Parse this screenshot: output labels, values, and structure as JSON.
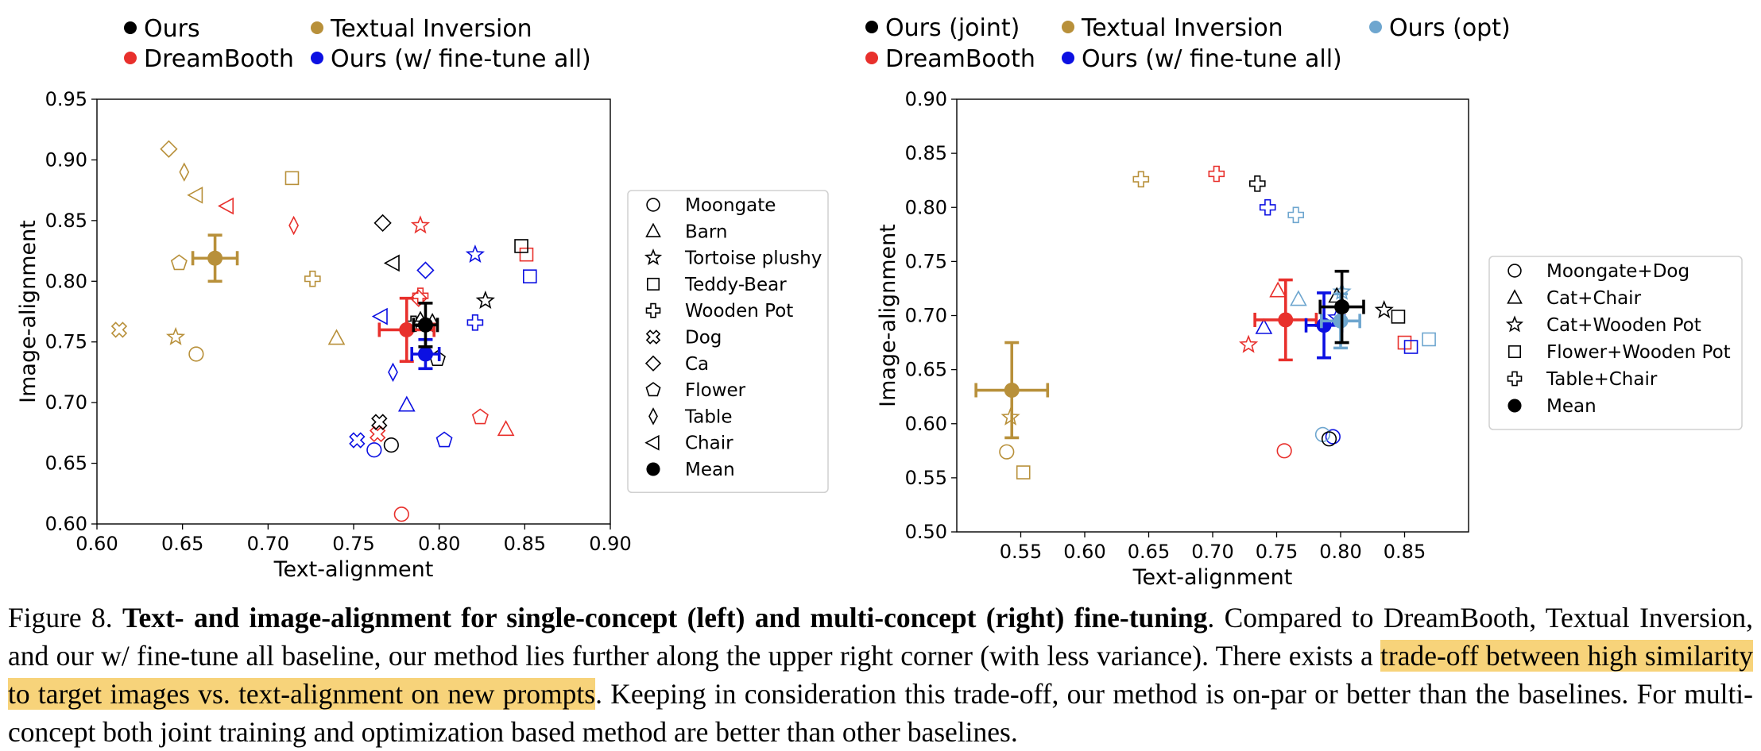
{
  "colors": {
    "ours": "#000000",
    "textual_inversion": "#b8903a",
    "dreambooth": "#e8302c",
    "ours_finetune_all": "#0c10e2",
    "ours_opt": "#6ea6cf"
  },
  "chart_data": [
    {
      "type": "scatter",
      "title": "",
      "xlabel": "Text-alignment",
      "ylabel": "Image-alignment",
      "xlim": [
        0.6,
        0.9
      ],
      "ylim": [
        0.6,
        0.95
      ],
      "xticks": [
        "0.60",
        "0.65",
        "0.70",
        "0.75",
        "0.80",
        "0.85",
        "0.90"
      ],
      "yticks": [
        "0.60",
        "0.65",
        "0.70",
        "0.75",
        "0.80",
        "0.85",
        "0.90",
        "0.95"
      ],
      "method_legend": [
        {
          "label": "Ours",
          "color": "#000000"
        },
        {
          "label": "Textual Inversion",
          "color": "#b8903a"
        },
        {
          "label": "DreamBooth",
          "color": "#e8302c"
        },
        {
          "label": "Ours (w/ fine-tune all)",
          "color": "#0c10e2"
        }
      ],
      "shape_legend": [
        {
          "label": "Moongate",
          "marker": "circle"
        },
        {
          "label": "Barn",
          "marker": "triangle"
        },
        {
          "label": "Tortoise plushy",
          "marker": "star"
        },
        {
          "label": "Teddy-Bear",
          "marker": "square"
        },
        {
          "label": "Wooden Pot",
          "marker": "plus"
        },
        {
          "label": "Dog",
          "marker": "xcross"
        },
        {
          "label": "Ca",
          "marker": "diamond"
        },
        {
          "label": "Flower",
          "marker": "pentagon"
        },
        {
          "label": "Table",
          "marker": "thindiamond"
        },
        {
          "label": "Chair",
          "marker": "triangleleft"
        },
        {
          "label": "Mean",
          "marker": "mean"
        }
      ],
      "series": [
        {
          "name": "Textual Inversion",
          "color": "#b8903a",
          "points": [
            {
              "concept": "Moongate",
              "marker": "circle",
              "x": 0.658,
              "y": 0.74
            },
            {
              "concept": "Barn",
              "marker": "triangle",
              "x": 0.74,
              "y": 0.753
            },
            {
              "concept": "Tortoise plushy",
              "marker": "star",
              "x": 0.646,
              "y": 0.754
            },
            {
              "concept": "Teddy-Bear",
              "marker": "square",
              "x": 0.714,
              "y": 0.885
            },
            {
              "concept": "Wooden Pot",
              "marker": "plus",
              "x": 0.726,
              "y": 0.802
            },
            {
              "concept": "Dog",
              "marker": "xcross",
              "x": 0.613,
              "y": 0.76
            },
            {
              "concept": "Ca",
              "marker": "diamond",
              "x": 0.642,
              "y": 0.909
            },
            {
              "concept": "Flower",
              "marker": "pentagon",
              "x": 0.648,
              "y": 0.815
            },
            {
              "concept": "Table",
              "marker": "thindiamond",
              "x": 0.651,
              "y": 0.89
            },
            {
              "concept": "Chair",
              "marker": "triangleleft",
              "x": 0.658,
              "y": 0.871
            }
          ],
          "mean": {
            "x": 0.669,
            "y": 0.819,
            "xerr": 0.013,
            "yerr": 0.019
          }
        },
        {
          "name": "DreamBooth",
          "color": "#e8302c",
          "points": [
            {
              "concept": "Moongate",
              "marker": "circle",
              "x": 0.778,
              "y": 0.608
            },
            {
              "concept": "Barn",
              "marker": "triangle",
              "x": 0.839,
              "y": 0.678
            },
            {
              "concept": "Tortoise plushy",
              "marker": "star",
              "x": 0.789,
              "y": 0.846
            },
            {
              "concept": "Teddy-Bear",
              "marker": "square",
              "x": 0.851,
              "y": 0.822
            },
            {
              "concept": "Wooden Pot",
              "marker": "plus",
              "x": 0.789,
              "y": 0.788
            },
            {
              "concept": "Dog",
              "marker": "xcross",
              "x": 0.764,
              "y": 0.674
            },
            {
              "concept": "Ca",
              "marker": "diamond",
              "x": 0.788,
              "y": 0.786
            },
            {
              "concept": "Flower",
              "marker": "pentagon",
              "x": 0.824,
              "y": 0.688
            },
            {
              "concept": "Table",
              "marker": "thindiamond",
              "x": 0.715,
              "y": 0.846
            },
            {
              "concept": "Chair",
              "marker": "triangleleft",
              "x": 0.676,
              "y": 0.862
            }
          ],
          "mean": {
            "x": 0.781,
            "y": 0.76,
            "xerr": 0.016,
            "yerr": 0.026
          }
        },
        {
          "name": "Ours (w/ fine-tune all)",
          "color": "#0c10e2",
          "points": [
            {
              "concept": "Moongate",
              "marker": "circle",
              "x": 0.762,
              "y": 0.661
            },
            {
              "concept": "Barn",
              "marker": "triangle",
              "x": 0.781,
              "y": 0.698
            },
            {
              "concept": "Tortoise plushy",
              "marker": "star",
              "x": 0.821,
              "y": 0.822
            },
            {
              "concept": "Teddy-Bear",
              "marker": "square",
              "x": 0.853,
              "y": 0.804
            },
            {
              "concept": "Wooden Pot",
              "marker": "plus",
              "x": 0.821,
              "y": 0.766
            },
            {
              "concept": "Dog",
              "marker": "xcross",
              "x": 0.752,
              "y": 0.669
            },
            {
              "concept": "Ca",
              "marker": "diamond",
              "x": 0.792,
              "y": 0.809
            },
            {
              "concept": "Flower",
              "marker": "pentagon",
              "x": 0.803,
              "y": 0.669
            },
            {
              "concept": "Table",
              "marker": "thindiamond",
              "x": 0.773,
              "y": 0.725
            },
            {
              "concept": "Chair",
              "marker": "triangleleft",
              "x": 0.766,
              "y": 0.771
            }
          ],
          "mean": {
            "x": 0.792,
            "y": 0.74,
            "xerr": 0.008,
            "yerr": 0.012
          }
        },
        {
          "name": "Ours",
          "color": "#000000",
          "points": [
            {
              "concept": "Moongate",
              "marker": "circle",
              "x": 0.772,
              "y": 0.665
            },
            {
              "concept": "Barn",
              "marker": "triangle",
              "x": 0.789,
              "y": 0.768
            },
            {
              "concept": "Tortoise plushy",
              "marker": "star",
              "x": 0.827,
              "y": 0.784
            },
            {
              "concept": "Teddy-Bear",
              "marker": "square",
              "x": 0.848,
              "y": 0.829
            },
            {
              "concept": "Wooden Pot",
              "marker": "plus",
              "x": 0.785,
              "y": 0.765
            },
            {
              "concept": "Dog",
              "marker": "xcross",
              "x": 0.765,
              "y": 0.684
            },
            {
              "concept": "Ca",
              "marker": "diamond",
              "x": 0.767,
              "y": 0.848
            },
            {
              "concept": "Flower",
              "marker": "pentagon",
              "x": 0.799,
              "y": 0.736
            },
            {
              "concept": "Table",
              "marker": "thindiamond",
              "x": 0.796,
              "y": 0.766
            },
            {
              "concept": "Chair",
              "marker": "triangleleft",
              "x": 0.773,
              "y": 0.815
            }
          ],
          "mean": {
            "x": 0.792,
            "y": 0.764,
            "xerr": 0.007,
            "yerr": 0.018
          }
        }
      ]
    },
    {
      "type": "scatter",
      "title": "",
      "xlabel": "Text-alignment",
      "ylabel": "Image-alignment",
      "xlim": [
        0.5,
        0.9
      ],
      "ylim": [
        0.5,
        0.9
      ],
      "xticks": [
        "0.55",
        "0.60",
        "0.65",
        "0.70",
        "0.75",
        "0.80",
        "0.85"
      ],
      "yticks": [
        "0.50",
        "0.55",
        "0.60",
        "0.65",
        "0.70",
        "0.75",
        "0.80",
        "0.85",
        "0.90"
      ],
      "method_legend": [
        {
          "label": "Ours (joint)",
          "color": "#000000"
        },
        {
          "label": "Textual Inversion",
          "color": "#b8903a"
        },
        {
          "label": "Ours (opt)",
          "color": "#6ea6cf"
        },
        {
          "label": "DreamBooth",
          "color": "#e8302c"
        },
        {
          "label": "Ours (w/ fine-tune all)",
          "color": "#0c10e2"
        }
      ],
      "shape_legend": [
        {
          "label": "Moongate+Dog",
          "marker": "circle"
        },
        {
          "label": "Cat+Chair",
          "marker": "triangle"
        },
        {
          "label": "Cat+Wooden Pot",
          "marker": "star"
        },
        {
          "label": "Flower+Wooden Pot",
          "marker": "square"
        },
        {
          "label": "Table+Chair",
          "marker": "plus"
        },
        {
          "label": "Mean",
          "marker": "mean"
        }
      ],
      "series": [
        {
          "name": "Textual Inversion",
          "color": "#b8903a",
          "points": [
            {
              "concept": "Moongate+Dog",
              "marker": "circle",
              "x": 0.539,
              "y": 0.574
            },
            {
              "concept": "Cat+Wooden Pot",
              "marker": "star",
              "x": 0.542,
              "y": 0.606
            },
            {
              "concept": "Flower+Wooden Pot",
              "marker": "square",
              "x": 0.552,
              "y": 0.555
            },
            {
              "concept": "Table+Chair",
              "marker": "plus",
              "x": 0.644,
              "y": 0.826
            }
          ],
          "mean": {
            "x": 0.543,
            "y": 0.631,
            "xerr": 0.028,
            "yerr": 0.044
          }
        },
        {
          "name": "DreamBooth",
          "color": "#e8302c",
          "points": [
            {
              "concept": "Moongate+Dog",
              "marker": "circle",
              "x": 0.756,
              "y": 0.575
            },
            {
              "concept": "Cat+Chair",
              "marker": "triangle",
              "x": 0.751,
              "y": 0.723
            },
            {
              "concept": "Cat+Wooden Pot",
              "marker": "star",
              "x": 0.728,
              "y": 0.673
            },
            {
              "concept": "Flower+Wooden Pot",
              "marker": "square",
              "x": 0.85,
              "y": 0.675
            },
            {
              "concept": "Table+Chair",
              "marker": "plus",
              "x": 0.703,
              "y": 0.831
            }
          ],
          "mean": {
            "x": 0.757,
            "y": 0.696,
            "xerr": 0.024,
            "yerr": 0.037
          }
        },
        {
          "name": "Ours (w/ fine-tune all)",
          "color": "#0c10e2",
          "points": [
            {
              "concept": "Moongate+Dog",
              "marker": "circle",
              "x": 0.794,
              "y": 0.588
            },
            {
              "concept": "Cat+Chair",
              "marker": "triangle",
              "x": 0.74,
              "y": 0.689
            },
            {
              "concept": "Cat+Wooden Pot",
              "marker": "star",
              "x": 0.797,
              "y": 0.698
            },
            {
              "concept": "Flower+Wooden Pot",
              "marker": "square",
              "x": 0.855,
              "y": 0.671
            },
            {
              "concept": "Table+Chair",
              "marker": "plus",
              "x": 0.743,
              "y": 0.8
            }
          ],
          "mean": {
            "x": 0.787,
            "y": 0.691,
            "xerr": 0.014,
            "yerr": 0.03
          }
        },
        {
          "name": "Ours (opt)",
          "color": "#6ea6cf",
          "points": [
            {
              "concept": "Moongate+Dog",
              "marker": "circle",
              "x": 0.786,
              "y": 0.59
            },
            {
              "concept": "Cat+Chair",
              "marker": "triangle",
              "x": 0.767,
              "y": 0.715
            },
            {
              "concept": "Cat+Wooden Pot",
              "marker": "star",
              "x": 0.801,
              "y": 0.722
            },
            {
              "concept": "Flower+Wooden Pot",
              "marker": "square",
              "x": 0.869,
              "y": 0.678
            },
            {
              "concept": "Table+Chair",
              "marker": "plus",
              "x": 0.765,
              "y": 0.793
            }
          ],
          "mean": {
            "x": 0.8,
            "y": 0.695,
            "xerr": 0.015,
            "yerr": 0.025
          }
        },
        {
          "name": "Ours (joint)",
          "color": "#000000",
          "points": [
            {
              "concept": "Moongate+Dog",
              "marker": "circle",
              "x": 0.791,
              "y": 0.586
            },
            {
              "concept": "Cat+Chair",
              "marker": "triangle",
              "x": 0.797,
              "y": 0.718
            },
            {
              "concept": "Cat+Wooden Pot",
              "marker": "star",
              "x": 0.834,
              "y": 0.705
            },
            {
              "concept": "Flower+Wooden Pot",
              "marker": "square",
              "x": 0.845,
              "y": 0.699
            },
            {
              "concept": "Table+Chair",
              "marker": "plus",
              "x": 0.735,
              "y": 0.822
            }
          ],
          "mean": {
            "x": 0.801,
            "y": 0.708,
            "xerr": 0.017,
            "yerr": 0.033
          }
        }
      ]
    }
  ],
  "caption": {
    "label": "Figure 8.",
    "bold": "Text- and image-alignment for single-concept (left) and multi-concept (right) fine-tuning",
    "text1": ". Compared to DreamBooth, Textual Inversion, and our w/ fine-tune all baseline, our method lies further along the upper right corner (with less variance). There exists a ",
    "highlight": "trade-off between high similarity to target images vs. text-alignment on new prompts",
    "text2": ". Keeping in consideration this trade-off, our method is on-par or better than the baselines. For multi-concept both joint training and optimization based method are better than other baselines."
  }
}
